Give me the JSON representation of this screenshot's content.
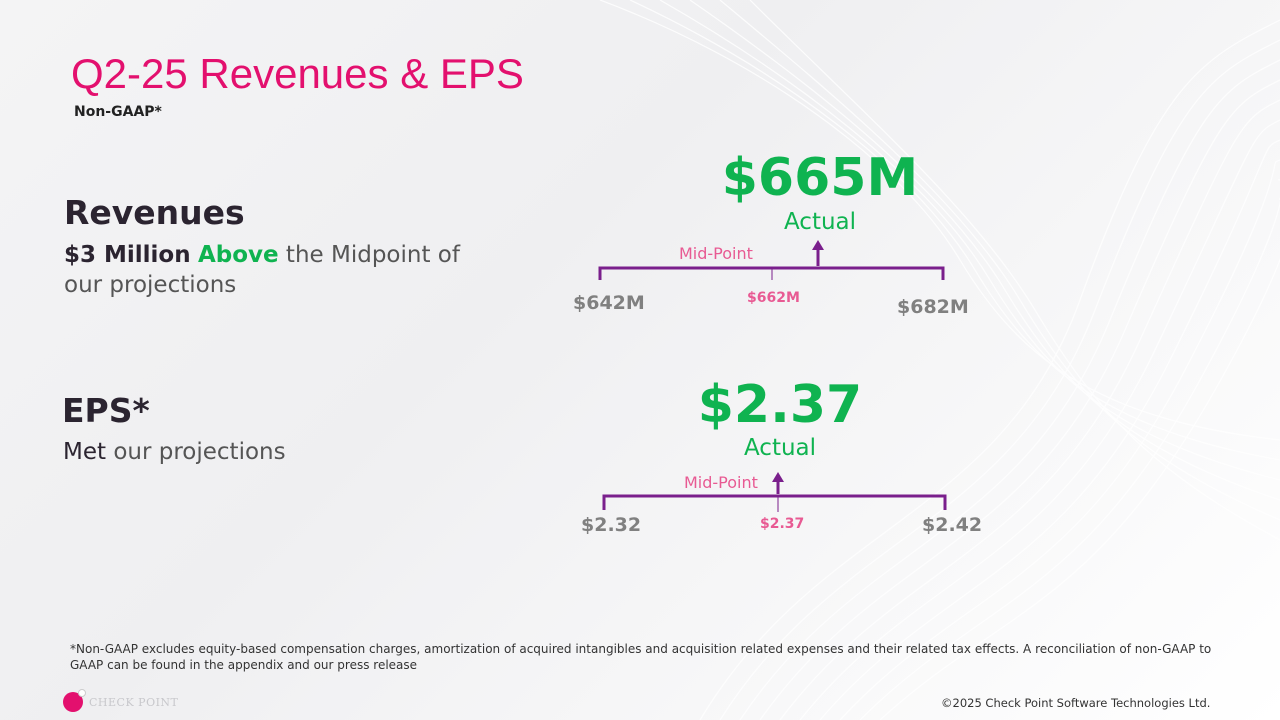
{
  "slide": {
    "title": "Q2-25 Revenues & EPS",
    "subtitle": "Non-GAAP*"
  },
  "revenues": {
    "heading": "Revenues",
    "line1_strong": "$3 Million",
    "line1_highlight": "Above",
    "line1_rest": "the Midpoint of",
    "line2": "our projections",
    "actual_value": "$665M",
    "actual_label": "Actual",
    "midpoint_label": "Mid-Point",
    "range_low": "$642M",
    "range_mid": "$662M",
    "range_high": "$682M"
  },
  "eps": {
    "heading": "EPS*",
    "line1_strong": "Met",
    "line1_rest": "our projections",
    "actual_value": "$2.37",
    "actual_label": "Actual",
    "midpoint_label": "Mid-Point",
    "range_low": "$2.32",
    "range_mid": "$2.37",
    "range_high": "$2.42"
  },
  "footer": {
    "footnote": "*Non-GAAP excludes equity-based compensation charges, amortization of acquired intangibles and acquisition related expenses and their related tax effects. A reconciliation of non-GAAP to GAAP can be found in the appendix and our press release",
    "copyright": "©2025 Check Point Software Technologies Ltd.",
    "logo_text": "CHECK POINT"
  },
  "colors": {
    "title_pink": "#e3106e",
    "green": "#0fb350",
    "bracket_purple": "#7a1f8c",
    "midpoint_pink": "#e85a93",
    "range_gray": "#808080"
  }
}
